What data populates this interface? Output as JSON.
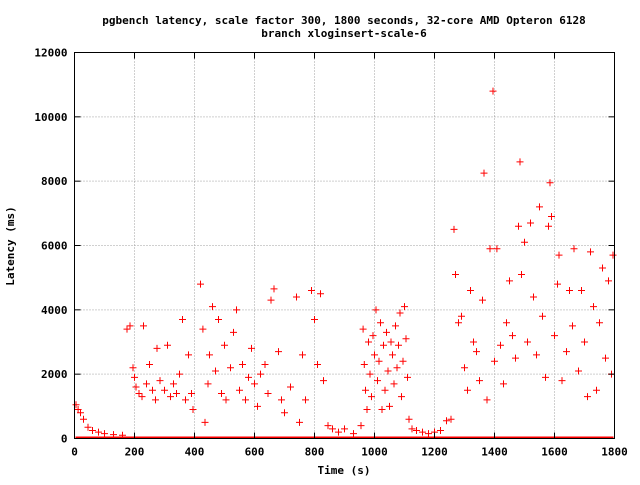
{
  "chart_data": {
    "type": "scatter",
    "title": "pgbench latency, scale factor 300, 1800 seconds, 32-core AMD Opteron 6128",
    "subtitle": "branch xloginsert-scale-6",
    "xlabel": "Time (s)",
    "ylabel": "Latency (ms)",
    "xlim": [
      0,
      1800
    ],
    "ylim": [
      0,
      12000
    ],
    "xticks": [
      0,
      200,
      400,
      600,
      800,
      1000,
      1200,
      1400,
      1600,
      1800
    ],
    "yticks": [
      0,
      2000,
      4000,
      6000,
      8000,
      10000,
      12000
    ],
    "xtick_labels": [
      "0",
      "200",
      "400",
      "600",
      "800",
      "1000",
      "1200",
      "1400",
      "1600",
      "1800"
    ],
    "ytick_labels": [
      "0",
      "2000",
      "4000",
      "6000",
      "8000",
      "10000",
      "12000"
    ],
    "grid": true,
    "legend": "none",
    "marker": "plus",
    "color": "#ff0000",
    "series": [
      {
        "points": [
          [
            5,
            1050
          ],
          [
            12,
            900
          ],
          [
            20,
            800
          ],
          [
            30,
            600
          ],
          [
            45,
            350
          ],
          [
            60,
            250
          ],
          [
            80,
            200
          ],
          [
            100,
            150
          ],
          [
            130,
            120
          ],
          [
            160,
            100
          ],
          [
            175,
            3400
          ],
          [
            185,
            3500
          ],
          [
            195,
            2200
          ],
          [
            200,
            1900
          ],
          [
            205,
            1600
          ],
          [
            215,
            1400
          ],
          [
            225,
            1300
          ],
          [
            230,
            3500
          ],
          [
            240,
            1700
          ],
          [
            250,
            2300
          ],
          [
            260,
            1500
          ],
          [
            270,
            1200
          ],
          [
            275,
            2800
          ],
          [
            285,
            1800
          ],
          [
            300,
            1500
          ],
          [
            310,
            2900
          ],
          [
            320,
            1300
          ],
          [
            330,
            1700
          ],
          [
            340,
            1400
          ],
          [
            350,
            2000
          ],
          [
            360,
            3700
          ],
          [
            370,
            1200
          ],
          [
            380,
            2600
          ],
          [
            390,
            1400
          ],
          [
            395,
            900
          ],
          [
            420,
            4800
          ],
          [
            428,
            3400
          ],
          [
            435,
            500
          ],
          [
            445,
            1700
          ],
          [
            450,
            2600
          ],
          [
            460,
            4100
          ],
          [
            470,
            2100
          ],
          [
            480,
            3700
          ],
          [
            490,
            1400
          ],
          [
            500,
            2900
          ],
          [
            505,
            1200
          ],
          [
            520,
            2200
          ],
          [
            530,
            3300
          ],
          [
            540,
            4000
          ],
          [
            550,
            1500
          ],
          [
            560,
            2300
          ],
          [
            570,
            1200
          ],
          [
            580,
            1900
          ],
          [
            590,
            2800
          ],
          [
            600,
            1700
          ],
          [
            610,
            1000
          ],
          [
            620,
            2000
          ],
          [
            635,
            2300
          ],
          [
            645,
            1400
          ],
          [
            655,
            4300
          ],
          [
            665,
            4650
          ],
          [
            680,
            2700
          ],
          [
            690,
            1200
          ],
          [
            700,
            800
          ],
          [
            720,
            1600
          ],
          [
            740,
            4400
          ],
          [
            750,
            500
          ],
          [
            760,
            2600
          ],
          [
            770,
            1200
          ],
          [
            790,
            4600
          ],
          [
            800,
            3700
          ],
          [
            810,
            2300
          ],
          [
            820,
            4500
          ],
          [
            830,
            1800
          ],
          [
            845,
            400
          ],
          [
            860,
            300
          ],
          [
            880,
            200
          ],
          [
            900,
            300
          ],
          [
            930,
            150
          ],
          [
            955,
            400
          ],
          [
            962,
            3400
          ],
          [
            966,
            2300
          ],
          [
            970,
            1500
          ],
          [
            975,
            900
          ],
          [
            980,
            3000
          ],
          [
            985,
            2000
          ],
          [
            990,
            1300
          ],
          [
            995,
            3200
          ],
          [
            1000,
            2600
          ],
          [
            1005,
            4000
          ],
          [
            1010,
            1800
          ],
          [
            1015,
            2400
          ],
          [
            1020,
            3600
          ],
          [
            1025,
            900
          ],
          [
            1030,
            2900
          ],
          [
            1035,
            1500
          ],
          [
            1040,
            3300
          ],
          [
            1045,
            2100
          ],
          [
            1050,
            1000
          ],
          [
            1055,
            3000
          ],
          [
            1060,
            2600
          ],
          [
            1065,
            1700
          ],
          [
            1070,
            3500
          ],
          [
            1075,
            2200
          ],
          [
            1080,
            2900
          ],
          [
            1085,
            3900
          ],
          [
            1090,
            1300
          ],
          [
            1095,
            2400
          ],
          [
            1100,
            4100
          ],
          [
            1105,
            3100
          ],
          [
            1110,
            1900
          ],
          [
            1115,
            600
          ],
          [
            1125,
            300
          ],
          [
            1140,
            250
          ],
          [
            1160,
            200
          ],
          [
            1180,
            150
          ],
          [
            1200,
            200
          ],
          [
            1220,
            250
          ],
          [
            1240,
            550
          ],
          [
            1255,
            600
          ],
          [
            1265,
            6500
          ],
          [
            1270,
            5100
          ],
          [
            1280,
            3600
          ],
          [
            1290,
            3800
          ],
          [
            1300,
            2200
          ],
          [
            1310,
            1500
          ],
          [
            1320,
            4600
          ],
          [
            1330,
            3000
          ],
          [
            1340,
            2700
          ],
          [
            1350,
            1800
          ],
          [
            1360,
            4300
          ],
          [
            1365,
            8250
          ],
          [
            1375,
            1200
          ],
          [
            1385,
            5900
          ],
          [
            1395,
            10800
          ],
          [
            1400,
            2400
          ],
          [
            1408,
            5900
          ],
          [
            1420,
            2900
          ],
          [
            1430,
            1700
          ],
          [
            1440,
            3600
          ],
          [
            1450,
            4900
          ],
          [
            1460,
            3200
          ],
          [
            1470,
            2500
          ],
          [
            1480,
            6600
          ],
          [
            1485,
            8600
          ],
          [
            1490,
            5100
          ],
          [
            1500,
            6100
          ],
          [
            1510,
            3000
          ],
          [
            1520,
            6700
          ],
          [
            1530,
            4400
          ],
          [
            1540,
            2600
          ],
          [
            1550,
            7200
          ],
          [
            1560,
            3800
          ],
          [
            1570,
            1900
          ],
          [
            1580,
            6600
          ],
          [
            1585,
            7950
          ],
          [
            1590,
            6900
          ],
          [
            1600,
            3200
          ],
          [
            1610,
            4800
          ],
          [
            1615,
            5700
          ],
          [
            1625,
            1800
          ],
          [
            1640,
            2700
          ],
          [
            1650,
            4600
          ],
          [
            1660,
            3500
          ],
          [
            1665,
            5900
          ],
          [
            1680,
            2100
          ],
          [
            1690,
            4600
          ],
          [
            1700,
            3000
          ],
          [
            1710,
            1300
          ],
          [
            1720,
            5800
          ],
          [
            1730,
            4100
          ],
          [
            1740,
            1500
          ],
          [
            1750,
            3600
          ],
          [
            1760,
            5300
          ],
          [
            1770,
            2500
          ],
          [
            1780,
            4900
          ],
          [
            1790,
            2000
          ],
          [
            1795,
            5700
          ]
        ]
      }
    ]
  }
}
